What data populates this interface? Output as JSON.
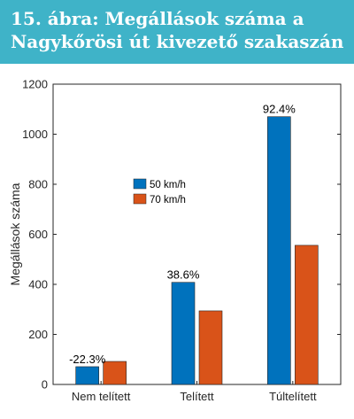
{
  "figure": {
    "caption": "15. ábra: Megállások száma a Nagykőrösi út kivezető szakaszán"
  },
  "colors": {
    "banner": "#3fb3c8",
    "series_50": "#0072bd",
    "series_70": "#d95319"
  },
  "chart_data": {
    "type": "bar",
    "title": "",
    "xlabel": "",
    "ylabel": "Megállások száma",
    "categories": [
      "Nem telített",
      "Telített",
      "Túltelített"
    ],
    "series": [
      {
        "name": "50 km/h",
        "values": [
          71,
          408,
          1070
        ]
      },
      {
        "name": "70 km/h",
        "values": [
          92,
          294,
          556
        ]
      }
    ],
    "annotations": [
      "-22.3%",
      "38.6%",
      "92.4%"
    ],
    "ylim": [
      0,
      1200
    ],
    "yticks": [
      0,
      200,
      400,
      600,
      800,
      1000,
      1200
    ],
    "grid": false,
    "legend_position": "upper-middle"
  }
}
